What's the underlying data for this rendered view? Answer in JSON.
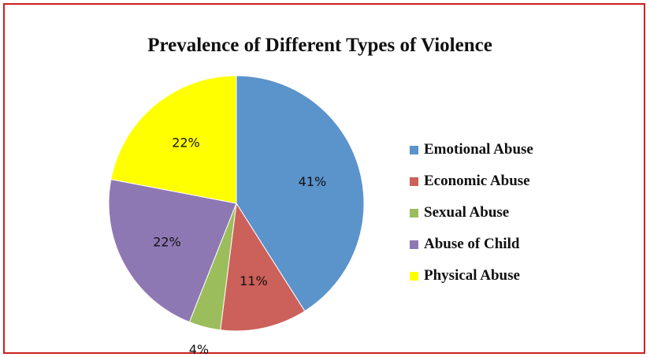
{
  "chart_data": {
    "type": "pie",
    "title": "Prevalence of Different Types of Violence",
    "legend_position": "right",
    "slices": [
      {
        "name": "Emotional Abuse",
        "value": 41,
        "label": "41%",
        "color": "#5b93cb"
      },
      {
        "name": "Economic Abuse",
        "value": 11,
        "label": "11%",
        "color": "#cc605a"
      },
      {
        "name": "Sexual Abuse",
        "value": 4,
        "label": "4%",
        "color": "#9bbd5c"
      },
      {
        "name": "Abuse of Child",
        "value": 22,
        "label": "22%",
        "color": "#8e78b4"
      },
      {
        "name": "Physical Abuse",
        "value": 22,
        "label": "22%",
        "color": "#ffff00"
      }
    ]
  }
}
